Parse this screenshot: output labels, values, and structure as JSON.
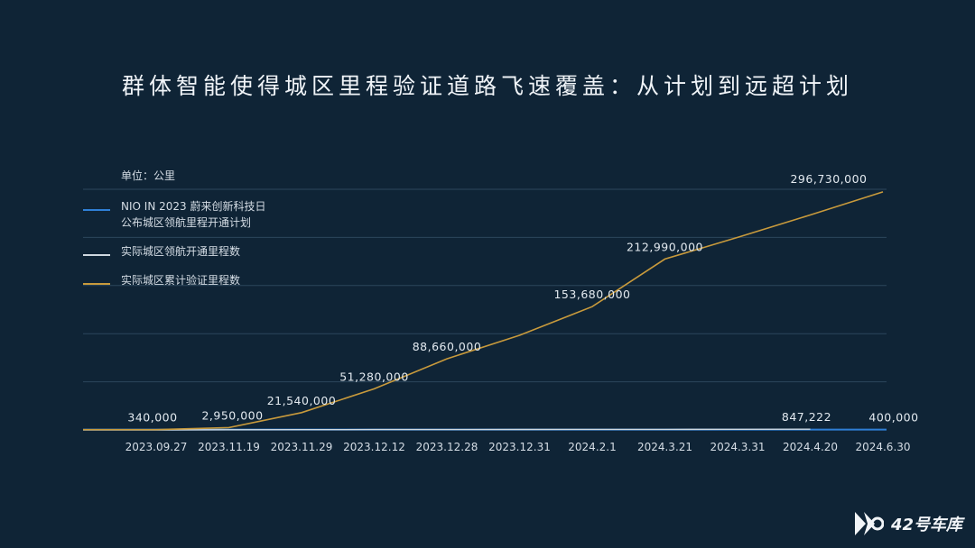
{
  "title": "群体智能使得城区里程验证道路飞速覆盖：从计划到远超计划",
  "unit_label": "单位：公里",
  "logo_text": "42号车库",
  "colors": {
    "background": "#0f2436",
    "plan": "#2f7fd6",
    "actual_nop": "#cfd8e0",
    "cumulative": "#c89a3c",
    "grid": "#2c465c"
  },
  "chart_data": {
    "type": "line",
    "title": "群体智能使得城区里程验证道路飞速覆盖：从计划到远超计划",
    "ylabel": "单位：公里",
    "categories": [
      "2023.09.27",
      "2023.11.19",
      "2023.11.29",
      "2023.12.12",
      "2023.12.28",
      "2023.12.31",
      "2024.2.1",
      "2024.3.21",
      "2024.3.31",
      "2024.4.20",
      "2024.6.30"
    ],
    "ylim": [
      0,
      300000000
    ],
    "grid": true,
    "legend_position": "top-left",
    "series": [
      {
        "name": "NIO IN 2023 蔚来创新科技日\n公布城区领航里程开通计划",
        "color": "#2f7fd6",
        "values": [
          null,
          null,
          null,
          null,
          null,
          null,
          null,
          null,
          null,
          null,
          400000
        ],
        "labels": [
          null,
          null,
          null,
          null,
          null,
          null,
          null,
          null,
          null,
          null,
          "400,000"
        ]
      },
      {
        "name": "实际城区领航开通里程数",
        "color": "#cfd8e0",
        "values": [
          0,
          200000,
          300000,
          400000,
          500000,
          600000,
          650000,
          720000,
          760000,
          847222,
          null
        ],
        "labels": [
          null,
          null,
          null,
          null,
          null,
          null,
          null,
          null,
          null,
          "847,222",
          null
        ]
      },
      {
        "name": "实际城区累计验证里程数",
        "color": "#c89a3c",
        "values": [
          340000,
          2950000,
          21540000,
          51280000,
          88660000,
          118000000,
          153680000,
          212990000,
          240000000,
          268000000,
          296730000
        ],
        "labels": [
          "340,000",
          "2,950,000",
          "21,540,000",
          "51,280,000",
          "88,660,000",
          null,
          "153,680,000",
          "212,990,000",
          null,
          null,
          "296,730,000"
        ]
      }
    ]
  }
}
